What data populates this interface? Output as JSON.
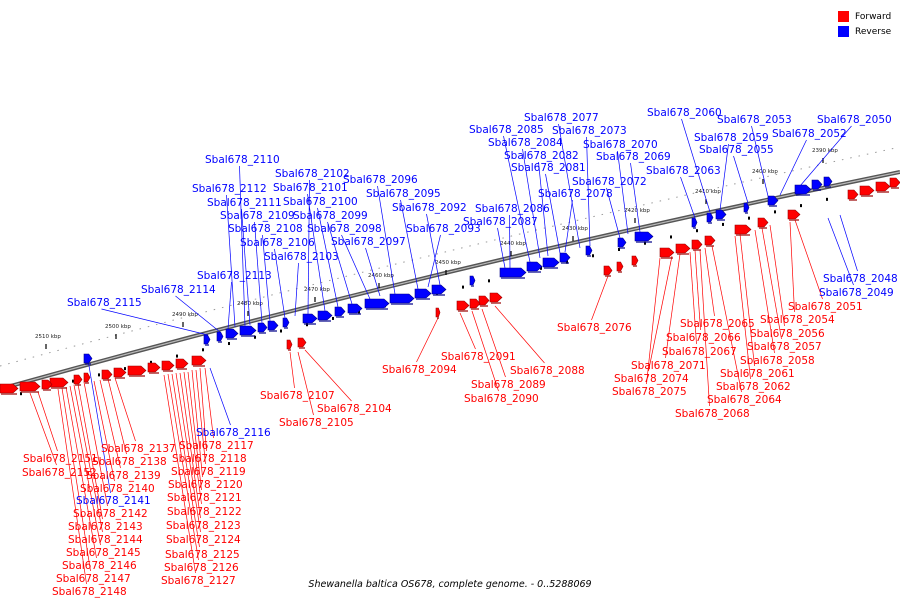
{
  "caption": "Shewanella baltica OS678, complete genome. - 0..5288069",
  "legend": [
    {
      "label": "Forward",
      "color": "#ff0000"
    },
    {
      "label": "Reverse",
      "color": "#0000ff"
    }
  ],
  "ticks": [
    "2390 kbp",
    "2400 kbp",
    "2410 kbp",
    "2420 kbp",
    "2430 kbp",
    "2440 kbp",
    "2450 kbp",
    "2460 kbp",
    "2470 kbp",
    "2480 kbp",
    "2490 kbp",
    "2500 kbp",
    "2510 kbp"
  ],
  "genes": [
    {
      "id": "Sbal678_2050",
      "strand": "reverse"
    },
    {
      "id": "Sbal678_2052",
      "strand": "reverse"
    },
    {
      "id": "Sbal678_2053",
      "strand": "reverse"
    },
    {
      "id": "Sbal678_2055",
      "strand": "reverse"
    },
    {
      "id": "Sbal678_2059",
      "strand": "reverse"
    },
    {
      "id": "Sbal678_2060",
      "strand": "reverse"
    },
    {
      "id": "Sbal678_2063",
      "strand": "reverse"
    },
    {
      "id": "Sbal678_2069",
      "strand": "reverse"
    },
    {
      "id": "Sbal678_2070",
      "strand": "reverse"
    },
    {
      "id": "Sbal678_2072",
      "strand": "reverse"
    },
    {
      "id": "Sbal678_2073",
      "strand": "reverse"
    },
    {
      "id": "Sbal678_2077",
      "strand": "reverse"
    },
    {
      "id": "Sbal678_2078",
      "strand": "reverse"
    },
    {
      "id": "Sbal678_2081",
      "strand": "reverse"
    },
    {
      "id": "Sbal678_2082",
      "strand": "reverse"
    },
    {
      "id": "Sbal678_2084",
      "strand": "reverse"
    },
    {
      "id": "Sbal678_2085",
      "strand": "reverse"
    },
    {
      "id": "Sbal678_2086",
      "strand": "reverse"
    },
    {
      "id": "Sbal678_2087",
      "strand": "reverse"
    },
    {
      "id": "Sbal678_2092",
      "strand": "reverse"
    },
    {
      "id": "Sbal678_2093",
      "strand": "reverse"
    },
    {
      "id": "Sbal678_2095",
      "strand": "reverse"
    },
    {
      "id": "Sbal678_2096",
      "strand": "reverse"
    },
    {
      "id": "Sbal678_2097",
      "strand": "reverse"
    },
    {
      "id": "Sbal678_2098",
      "strand": "reverse"
    },
    {
      "id": "Sbal678_2099",
      "strand": "reverse"
    },
    {
      "id": "Sbal678_2100",
      "strand": "reverse"
    },
    {
      "id": "Sbal678_2101",
      "strand": "reverse"
    },
    {
      "id": "Sbal678_2102",
      "strand": "reverse"
    },
    {
      "id": "Sbal678_2103",
      "strand": "reverse"
    },
    {
      "id": "Sbal678_2106",
      "strand": "reverse"
    },
    {
      "id": "Sbal678_2108",
      "strand": "reverse"
    },
    {
      "id": "Sbal678_2109",
      "strand": "reverse"
    },
    {
      "id": "Sbal678_2110",
      "strand": "reverse"
    },
    {
      "id": "Sbal678_2111",
      "strand": "reverse"
    },
    {
      "id": "Sbal678_2112",
      "strand": "reverse"
    },
    {
      "id": "Sbal678_2113",
      "strand": "reverse"
    },
    {
      "id": "Sbal678_2114",
      "strand": "reverse"
    },
    {
      "id": "Sbal678_2115",
      "strand": "reverse"
    },
    {
      "id": "Sbal678_2116",
      "strand": "reverse"
    },
    {
      "id": "Sbal678_2141",
      "strand": "reverse"
    },
    {
      "id": "Sbal678_2048",
      "strand": "reverse"
    },
    {
      "id": "Sbal678_2049",
      "strand": "reverse"
    },
    {
      "id": "Sbal678_2051",
      "strand": "forward"
    },
    {
      "id": "Sbal678_2054",
      "strand": "forward"
    },
    {
      "id": "Sbal678_2056",
      "strand": "forward"
    },
    {
      "id": "Sbal678_2057",
      "strand": "forward"
    },
    {
      "id": "Sbal678_2058",
      "strand": "forward"
    },
    {
      "id": "Sbal678_2061",
      "strand": "forward"
    },
    {
      "id": "Sbal678_2062",
      "strand": "forward"
    },
    {
      "id": "Sbal678_2064",
      "strand": "forward"
    },
    {
      "id": "Sbal678_2065",
      "strand": "forward"
    },
    {
      "id": "Sbal678_2066",
      "strand": "forward"
    },
    {
      "id": "Sbal678_2067",
      "strand": "forward"
    },
    {
      "id": "Sbal678_2068",
      "strand": "forward"
    },
    {
      "id": "Sbal678_2071",
      "strand": "forward"
    },
    {
      "id": "Sbal678_2074",
      "strand": "forward"
    },
    {
      "id": "Sbal678_2075",
      "strand": "forward"
    },
    {
      "id": "Sbal678_2076",
      "strand": "forward"
    },
    {
      "id": "Sbal678_2088",
      "strand": "forward"
    },
    {
      "id": "Sbal678_2089",
      "strand": "forward"
    },
    {
      "id": "Sbal678_2090",
      "strand": "forward"
    },
    {
      "id": "Sbal678_2091",
      "strand": "forward"
    },
    {
      "id": "Sbal678_2094",
      "strand": "forward"
    },
    {
      "id": "Sbal678_2104",
      "strand": "forward"
    },
    {
      "id": "Sbal678_2105",
      "strand": "forward"
    },
    {
      "id": "Sbal678_2107",
      "strand": "forward"
    },
    {
      "id": "Sbal678_2117",
      "strand": "forward"
    },
    {
      "id": "Sbal678_2118",
      "strand": "forward"
    },
    {
      "id": "Sbal678_2119",
      "strand": "forward"
    },
    {
      "id": "Sbal678_2120",
      "strand": "forward"
    },
    {
      "id": "Sbal678_2121",
      "strand": "forward"
    },
    {
      "id": "Sbal678_2122",
      "strand": "forward"
    },
    {
      "id": "Sbal678_2123",
      "strand": "forward"
    },
    {
      "id": "Sbal678_2124",
      "strand": "forward"
    },
    {
      "id": "Sbal678_2125",
      "strand": "forward"
    },
    {
      "id": "Sbal678_2126",
      "strand": "forward"
    },
    {
      "id": "Sbal678_2127",
      "strand": "forward"
    },
    {
      "id": "Sbal678_2137",
      "strand": "forward"
    },
    {
      "id": "Sbal678_2138",
      "strand": "forward"
    },
    {
      "id": "Sbal678_2139",
      "strand": "forward"
    },
    {
      "id": "Sbal678_2140",
      "strand": "forward"
    },
    {
      "id": "Sbal678_2142",
      "strand": "forward"
    },
    {
      "id": "Sbal678_2143",
      "strand": "forward"
    },
    {
      "id": "Sbal678_2144",
      "strand": "forward"
    },
    {
      "id": "Sbal678_2145",
      "strand": "forward"
    },
    {
      "id": "Sbal678_2146",
      "strand": "forward"
    },
    {
      "id": "Sbal678_2147",
      "strand": "forward"
    },
    {
      "id": "Sbal678_2148",
      "strand": "forward"
    },
    {
      "id": "Sbal678_2151",
      "strand": "forward"
    },
    {
      "id": "Sbal678_2152",
      "strand": "forward"
    }
  ]
}
